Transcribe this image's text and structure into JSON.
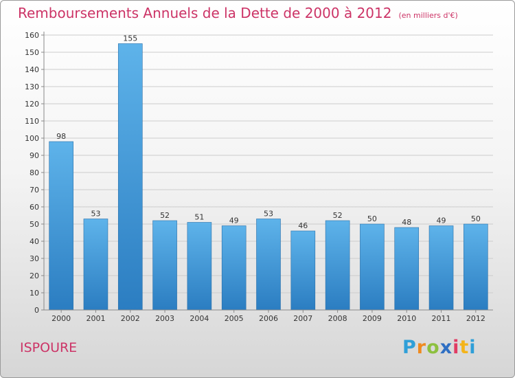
{
  "chart_data": {
    "type": "bar",
    "title": "Remboursements Annuels de la Dette de 2000 à 2012",
    "subtitle": "(en milliers d'€)",
    "categories": [
      "2000",
      "2001",
      "2002",
      "2003",
      "2004",
      "2005",
      "2006",
      "2007",
      "2008",
      "2009",
      "2010",
      "2011",
      "2012"
    ],
    "values": [
      98,
      53,
      155,
      52,
      51,
      49,
      53,
      46,
      52,
      50,
      48,
      49,
      50
    ],
    "ylim": [
      0,
      160
    ],
    "yticks": [
      0,
      10,
      20,
      30,
      40,
      50,
      60,
      70,
      80,
      90,
      100,
      110,
      120,
      130,
      140,
      150,
      160
    ],
    "grid": true,
    "bar_color_top": "#5eb3ea",
    "bar_color_bottom": "#2b7dc1",
    "xlabel": "",
    "ylabel": ""
  },
  "commune": "ISPOURE",
  "logo": {
    "letters": [
      "P",
      "r",
      "o",
      "x",
      "i",
      "t",
      "i"
    ],
    "text": "Proxiti"
  },
  "colors": {
    "accent": "#cc3366",
    "grid": "#cccccc"
  }
}
